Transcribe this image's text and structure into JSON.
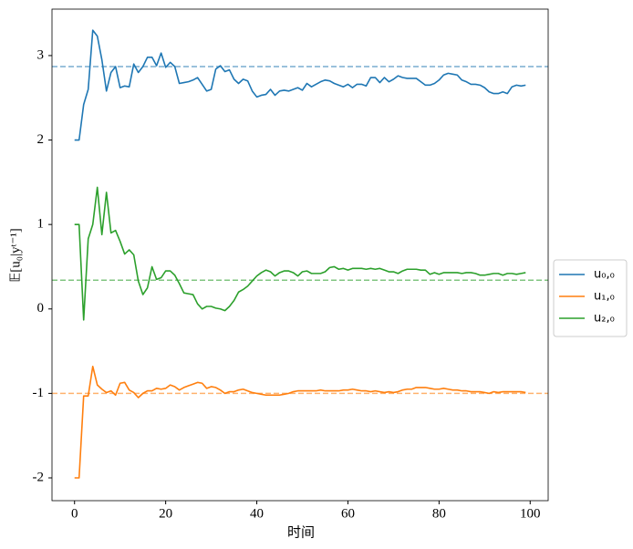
{
  "chart_data": {
    "type": "line",
    "xlabel": "时间",
    "ylabel": "𝔼[u₀|yᵗ⁻¹]",
    "xlim": [
      -4.95,
      103.95
    ],
    "ylim": [
      -2.27,
      3.55
    ],
    "xticks": [
      0,
      20,
      40,
      60,
      80,
      100
    ],
    "yticks": [
      -2,
      -1,
      0,
      1,
      2,
      3
    ],
    "legend": "right",
    "x": [
      0,
      1,
      2,
      3,
      4,
      5,
      6,
      7,
      8,
      9,
      10,
      11,
      12,
      13,
      14,
      15,
      16,
      17,
      18,
      19,
      20,
      21,
      22,
      23,
      24,
      25,
      26,
      27,
      28,
      29,
      30,
      31,
      32,
      33,
      34,
      35,
      36,
      37,
      38,
      39,
      40,
      41,
      42,
      43,
      44,
      45,
      46,
      47,
      48,
      49,
      50,
      51,
      52,
      53,
      54,
      55,
      56,
      57,
      58,
      59,
      60,
      61,
      62,
      63,
      64,
      65,
      66,
      67,
      68,
      69,
      70,
      71,
      72,
      73,
      74,
      75,
      76,
      77,
      78,
      79,
      80,
      81,
      82,
      83,
      84,
      85,
      86,
      87,
      88,
      89,
      90,
      91,
      92,
      93,
      94,
      95,
      96,
      97,
      98,
      99
    ],
    "series": [
      {
        "name": "u₀,₀",
        "color": "#1f77b4",
        "values": [
          2.0,
          2.0,
          2.42,
          2.6,
          3.3,
          3.23,
          2.95,
          2.58,
          2.8,
          2.87,
          2.62,
          2.64,
          2.63,
          2.9,
          2.8,
          2.87,
          2.98,
          2.98,
          2.88,
          3.03,
          2.86,
          2.92,
          2.87,
          2.67,
          2.68,
          2.69,
          2.71,
          2.74,
          2.66,
          2.58,
          2.6,
          2.84,
          2.88,
          2.81,
          2.83,
          2.72,
          2.67,
          2.72,
          2.7,
          2.58,
          2.51,
          2.53,
          2.54,
          2.6,
          2.53,
          2.58,
          2.59,
          2.58,
          2.6,
          2.62,
          2.59,
          2.67,
          2.63,
          2.66,
          2.69,
          2.71,
          2.7,
          2.67,
          2.65,
          2.63,
          2.66,
          2.62,
          2.66,
          2.66,
          2.64,
          2.74,
          2.74,
          2.68,
          2.74,
          2.69,
          2.72,
          2.76,
          2.74,
          2.73,
          2.73,
          2.73,
          2.69,
          2.65,
          2.65,
          2.67,
          2.71,
          2.77,
          2.79,
          2.78,
          2.77,
          2.71,
          2.69,
          2.66,
          2.66,
          2.65,
          2.62,
          2.57,
          2.55,
          2.55,
          2.57,
          2.55,
          2.63,
          2.65,
          2.64,
          2.65
        ]
      },
      {
        "name": "u₁,₀",
        "color": "#ff7f0e",
        "values": [
          -2.0,
          -2.0,
          -1.03,
          -1.03,
          -0.68,
          -0.9,
          -0.95,
          -0.99,
          -0.97,
          -1.02,
          -0.88,
          -0.87,
          -0.96,
          -0.99,
          -1.05,
          -1.0,
          -0.97,
          -0.97,
          -0.94,
          -0.95,
          -0.94,
          -0.9,
          -0.92,
          -0.96,
          -0.93,
          -0.91,
          -0.89,
          -0.87,
          -0.88,
          -0.94,
          -0.92,
          -0.93,
          -0.96,
          -1.0,
          -0.98,
          -0.98,
          -0.96,
          -0.95,
          -0.97,
          -0.99,
          -1.0,
          -1.01,
          -1.02,
          -1.02,
          -1.02,
          -1.02,
          -1.01,
          -1.0,
          -0.98,
          -0.97,
          -0.97,
          -0.97,
          -0.97,
          -0.97,
          -0.96,
          -0.97,
          -0.97,
          -0.97,
          -0.97,
          -0.96,
          -0.96,
          -0.95,
          -0.96,
          -0.97,
          -0.97,
          -0.98,
          -0.97,
          -0.98,
          -0.99,
          -0.98,
          -0.99,
          -0.98,
          -0.96,
          -0.95,
          -0.95,
          -0.93,
          -0.93,
          -0.93,
          -0.94,
          -0.95,
          -0.95,
          -0.94,
          -0.95,
          -0.96,
          -0.96,
          -0.97,
          -0.97,
          -0.98,
          -0.98,
          -0.98,
          -0.99,
          -1.0,
          -0.98,
          -0.99,
          -0.98,
          -0.98,
          -0.98,
          -0.98,
          -0.98,
          -0.99
        ]
      },
      {
        "name": "u₂,₀",
        "color": "#2ca02c",
        "values": [
          1.0,
          1.0,
          -0.13,
          0.83,
          1.0,
          1.44,
          0.88,
          1.38,
          0.9,
          0.93,
          0.8,
          0.65,
          0.7,
          0.64,
          0.33,
          0.17,
          0.25,
          0.5,
          0.35,
          0.37,
          0.45,
          0.45,
          0.4,
          0.3,
          0.19,
          0.18,
          0.17,
          0.06,
          0.0,
          0.03,
          0.03,
          0.01,
          0.0,
          -0.02,
          0.03,
          0.1,
          0.2,
          0.23,
          0.27,
          0.33,
          0.39,
          0.43,
          0.46,
          0.44,
          0.39,
          0.43,
          0.45,
          0.45,
          0.43,
          0.39,
          0.44,
          0.45,
          0.42,
          0.42,
          0.42,
          0.44,
          0.49,
          0.5,
          0.47,
          0.48,
          0.46,
          0.48,
          0.48,
          0.48,
          0.47,
          0.48,
          0.47,
          0.48,
          0.46,
          0.44,
          0.44,
          0.42,
          0.45,
          0.47,
          0.47,
          0.47,
          0.46,
          0.46,
          0.41,
          0.43,
          0.41,
          0.43,
          0.43,
          0.43,
          0.43,
          0.42,
          0.43,
          0.43,
          0.42,
          0.4,
          0.4,
          0.41,
          0.42,
          0.42,
          0.4,
          0.42,
          0.42,
          0.41,
          0.42,
          0.43
        ]
      }
    ],
    "hlines": [
      {
        "value": 2.87,
        "color": "#1f77b4"
      },
      {
        "value": 0.34,
        "color": "#2ca02c"
      },
      {
        "value": -1.0,
        "color": "#ff7f0e"
      }
    ]
  }
}
